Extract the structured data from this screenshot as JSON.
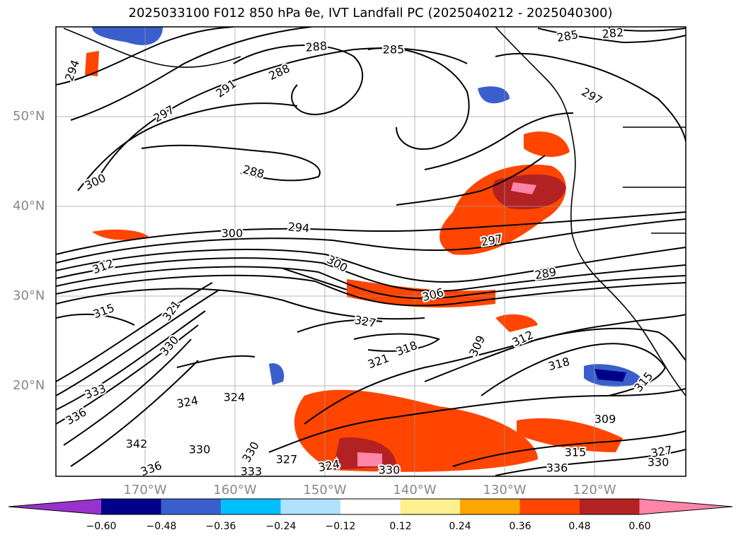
{
  "title": "2025033100 F012 850 hPa θe, IVT Landfall PC (2025040212 - 2025040300)",
  "map": {
    "lat_labels": [
      "50°N",
      "40°N",
      "30°N",
      "20°N"
    ],
    "lon_labels": [
      "170°W",
      "160°W",
      "150°W",
      "140°W",
      "130°W",
      "120°W"
    ],
    "contour_labels": [
      "294",
      "288",
      "285",
      "285",
      "282",
      "291",
      "288",
      "297",
      "297",
      "300",
      "288",
      "294",
      "300",
      "297",
      "312",
      "315",
      "300",
      "289",
      "306",
      "327",
      "321",
      "309",
      "312",
      "318",
      "321",
      "318",
      "315",
      "330",
      "324",
      "324",
      "336",
      "333",
      "342",
      "330",
      "330",
      "327",
      "324",
      "330",
      "309",
      "315",
      "327",
      "330",
      "333",
      "336",
      "336"
    ]
  },
  "colorbar": {
    "ticks": [
      "−0.60",
      "−0.48",
      "−0.36",
      "−0.24",
      "−0.12",
      "0.12",
      "0.24",
      "0.36",
      "0.48",
      "0.60"
    ],
    "colors": [
      "#9932cc",
      "#00008b",
      "#3a5fcd",
      "#00bfff",
      "#b0e2ff",
      "#ffffff",
      "#fff08f",
      "#ffa500",
      "#ff4500",
      "#b22222",
      "#ff85a8"
    ]
  },
  "colors": {
    "frame": "#000000",
    "grid": "#999999",
    "contour": "#000000"
  }
}
